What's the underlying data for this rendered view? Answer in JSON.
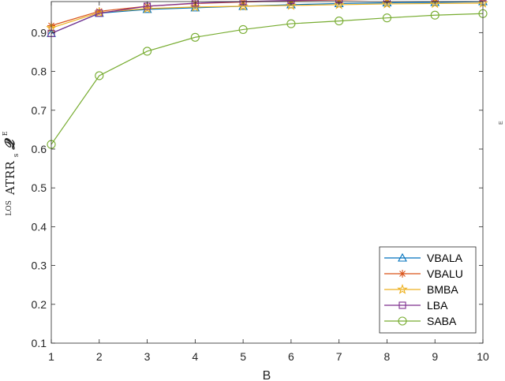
{
  "chart_data": {
    "type": "line",
    "xlabel": "B",
    "ylabel": {
      "prefix": "LOS",
      "main": "ATRR",
      "subscript": "s",
      "symbol": "𝓠",
      "superscript": "E"
    },
    "x": [
      1,
      2,
      3,
      4,
      5,
      6,
      7,
      8,
      9,
      10
    ],
    "xlim": [
      1,
      10
    ],
    "ylim": [
      0.1,
      0.98
    ],
    "x_ticks": [
      "1",
      "2",
      "3",
      "4",
      "5",
      "6",
      "7",
      "8",
      "9",
      "10"
    ],
    "y_ticks": [
      0.1,
      0.2,
      0.3,
      0.4,
      0.5,
      0.6,
      0.7,
      0.8,
      0.9
    ],
    "y_tick_labels": [
      "0.1",
      "0.2",
      "0.3",
      "0.4",
      "0.5",
      "0.6",
      "0.7",
      "0.8",
      "0.9"
    ],
    "grid": false,
    "legend_position": "bottom-right",
    "edge_mark": "E",
    "series": [
      {
        "name": "VBALA",
        "color": "#0072BD",
        "marker": "triangle",
        "values": [
          0.898,
          0.95,
          0.96,
          0.964,
          0.968,
          0.972,
          0.975,
          0.977,
          0.978,
          0.98
        ]
      },
      {
        "name": "VBALU",
        "color": "#D95319",
        "marker": "asterisk",
        "values": [
          0.918,
          0.955,
          0.968,
          0.975,
          0.979,
          0.982,
          0.984,
          0.986,
          0.987,
          0.988
        ]
      },
      {
        "name": "BMBA",
        "color": "#EDB120",
        "marker": "star",
        "values": [
          0.912,
          0.952,
          0.962,
          0.966,
          0.968,
          0.97,
          0.972,
          0.974,
          0.975,
          0.976
        ]
      },
      {
        "name": "LBA",
        "color": "#7E2F8E",
        "marker": "square",
        "values": [
          0.898,
          0.95,
          0.968,
          0.976,
          0.98,
          0.983,
          0.985,
          0.987,
          0.988,
          0.99
        ]
      },
      {
        "name": "SABA",
        "color": "#77AC30",
        "marker": "circle",
        "values": [
          0.612,
          0.789,
          0.852,
          0.888,
          0.908,
          0.923,
          0.93,
          0.938,
          0.945,
          0.949
        ]
      }
    ]
  }
}
